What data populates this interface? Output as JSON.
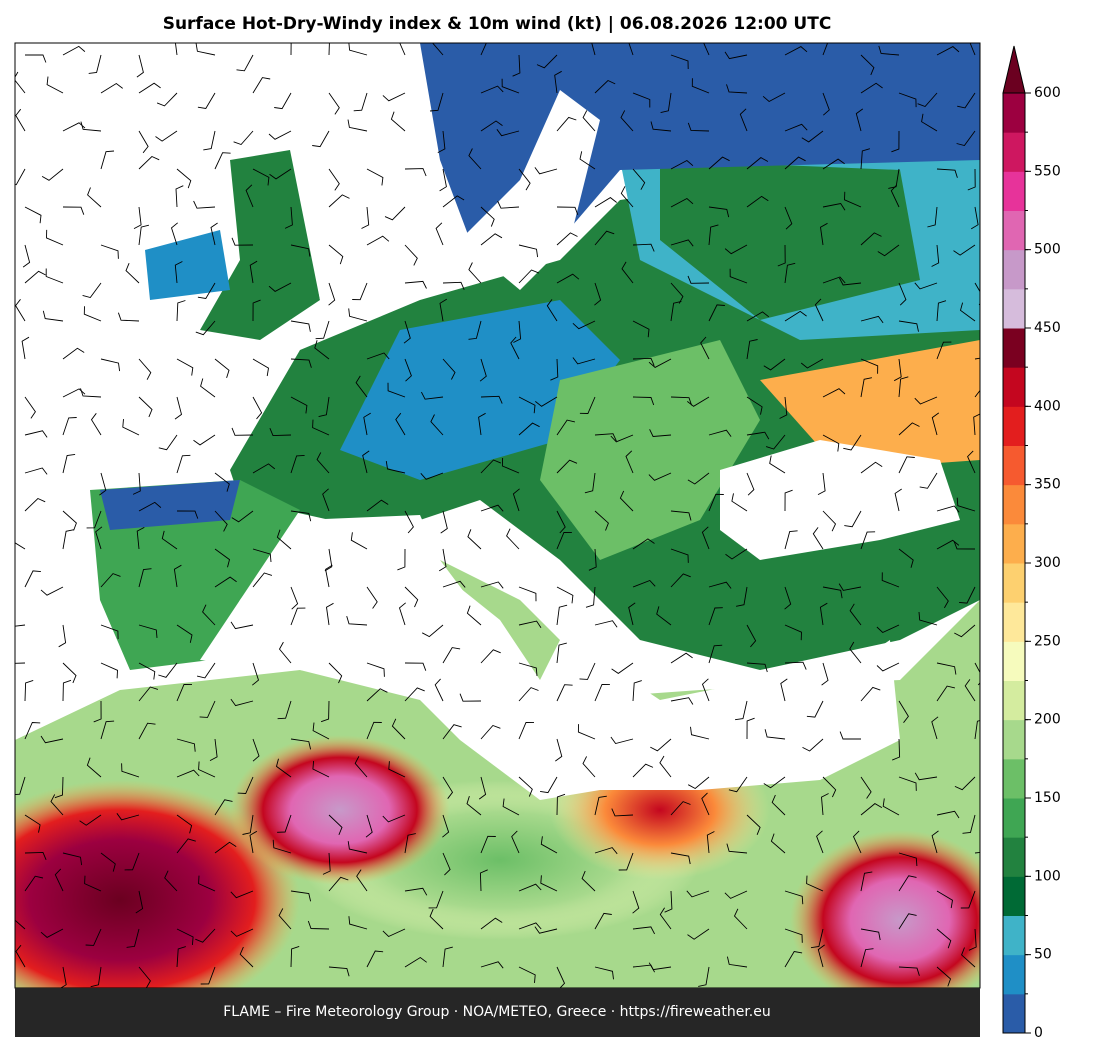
{
  "title": "Surface Hot-Dry-Windy index & 10m wind (kt)  |  06.08.2026 12:00 UTC",
  "footer": "FLAME – Fire Meteorology Group · NOA/METEO, Greece · https://fireweather.eu",
  "colorbar": {
    "bounds": [
      0,
      25,
      50,
      75,
      100,
      125,
      150,
      175,
      200,
      225,
      250,
      275,
      300,
      325,
      350,
      375,
      400,
      425,
      450,
      475,
      500,
      525,
      550,
      575,
      600
    ],
    "colors": [
      "#2a5ca8",
      "#1f8fc6",
      "#3fb3c8",
      "#006a35",
      "#22823f",
      "#3fa653",
      "#6cbf67",
      "#a7d98c",
      "#d4ec9f",
      "#f6fbbd",
      "#fee89a",
      "#fdd06f",
      "#fdae4c",
      "#fb8a3a",
      "#f65a2f",
      "#e31e1e",
      "#c4061f",
      "#7a0020",
      "#d6bcdc",
      "#c799c9",
      "#e066b2",
      "#e7339a",
      "#ce1760",
      "#9c0040"
    ],
    "extend_color": "#6b0020",
    "ticks": [
      0,
      50,
      100,
      150,
      200,
      250,
      300,
      350,
      400,
      450,
      500,
      550,
      600
    ]
  }
}
